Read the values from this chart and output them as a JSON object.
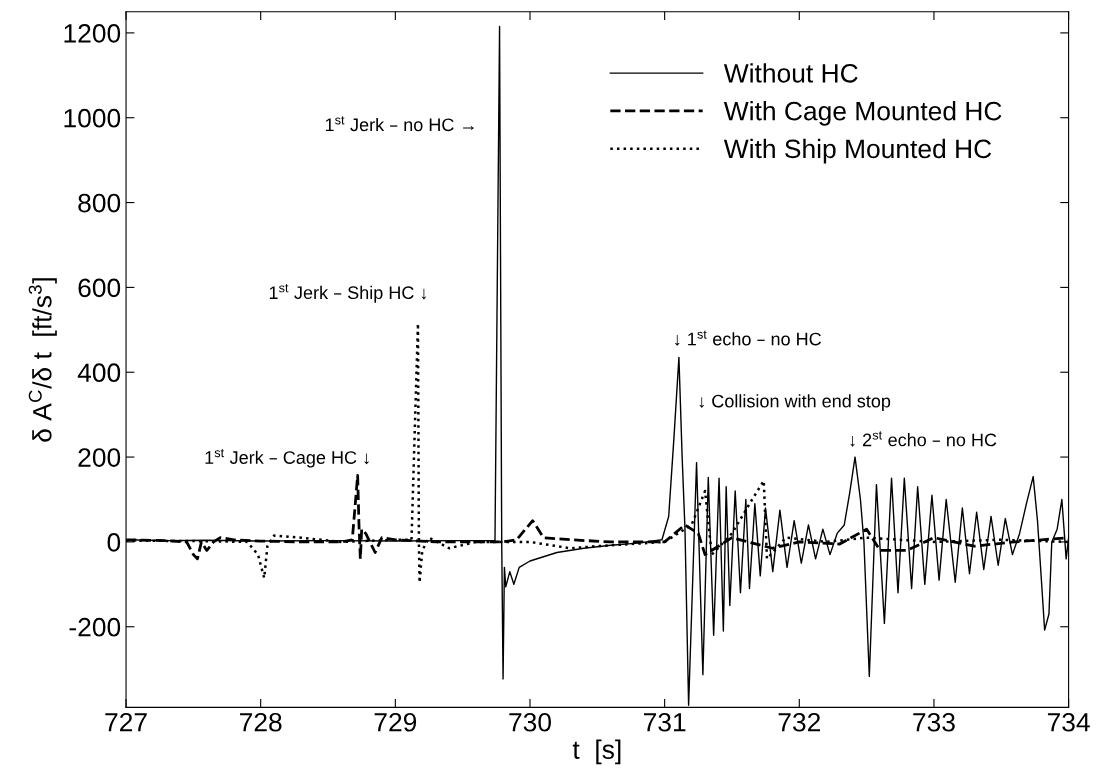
{
  "chart_data": {
    "type": "line",
    "xlabel": "t  [s]",
    "ylabel": "δ A$^{C}$/δ t  [ft/s$^{3}$]",
    "xlim": [
      727,
      734
    ],
    "xticks": [
      727,
      728,
      729,
      730,
      731,
      732,
      733,
      734
    ],
    "ylim": [
      -390,
      1250
    ],
    "yticks": [
      -200,
      0,
      200,
      400,
      600,
      800,
      1000,
      1200
    ],
    "grid": false,
    "legend": "top right",
    "marker": "none",
    "series": [
      {
        "name": "Without HC",
        "color": "#000000",
        "line_style": "solid",
        "x": [
          727.0,
          727.3,
          727.6,
          728.0,
          728.5,
          729.0,
          729.5,
          729.74,
          729.774,
          729.79,
          729.8,
          729.81,
          729.82,
          729.85,
          729.88,
          729.92,
          730.0,
          730.1,
          730.2,
          730.4,
          730.6,
          730.8,
          730.98,
          731.03,
          731.07,
          731.106,
          731.13,
          731.151,
          731.178,
          731.237,
          731.284,
          731.324,
          731.364,
          731.404,
          731.436,
          731.457,
          731.484,
          731.524,
          731.563,
          731.603,
          731.63,
          731.67,
          731.71,
          731.749,
          731.803,
          731.856,
          731.909,
          731.962,
          732.015,
          732.068,
          732.121,
          732.175,
          732.228,
          732.281,
          732.334,
          732.374,
          732.414,
          732.454,
          732.48,
          732.52,
          732.573,
          732.632,
          732.685,
          732.733,
          732.78,
          732.834,
          732.879,
          732.932,
          732.985,
          733.038,
          733.091,
          733.158,
          733.211,
          733.264,
          733.317,
          733.37,
          733.424,
          733.477,
          733.53,
          733.583,
          733.636,
          733.689,
          733.737,
          733.769,
          733.796,
          733.822,
          733.854,
          733.875,
          733.915,
          733.95,
          733.982,
          734.0
        ],
        "values": [
          5,
          3,
          4,
          2,
          3,
          2,
          3,
          3,
          1215,
          0,
          -323,
          -60,
          -106,
          -70,
          -100,
          -60,
          -45,
          -35,
          -25,
          -15,
          -8,
          -3,
          5,
          60,
          250,
          435,
          200,
          30,
          -385,
          187,
          -313,
          152,
          -220,
          150,
          -210,
          130,
          -150,
          120,
          -120,
          100,
          -110,
          90,
          -80,
          80,
          -70,
          75,
          -60,
          50,
          -50,
          40,
          -40,
          30,
          -30,
          20,
          40,
          115,
          200,
          100,
          0,
          -317,
          135,
          -192,
          150,
          -120,
          150,
          -110,
          130,
          -100,
          110,
          -90,
          100,
          -95,
          80,
          -75,
          70,
          -65,
          60,
          -55,
          55,
          -30,
          20,
          93,
          154,
          50,
          -80,
          -208,
          -170,
          0,
          30,
          100,
          -40,
          10
        ]
      },
      {
        "name": "With Cage Mounted HC",
        "color": "#000000",
        "line_style": "dashed",
        "x": [
          727.0,
          727.3,
          727.45,
          727.5,
          727.53,
          727.56,
          727.6,
          727.65,
          727.7,
          727.8,
          728.0,
          728.3,
          728.6,
          728.68,
          728.7,
          728.72,
          728.73,
          728.74,
          728.75,
          728.78,
          728.85,
          728.9,
          729.0,
          729.3,
          729.8,
          729.9,
          730.02,
          730.1,
          730.3,
          730.6,
          731.0,
          731.15,
          731.25,
          731.3,
          731.5,
          731.8,
          732.0,
          732.3,
          732.5,
          732.6,
          732.8,
          733.0,
          733.3,
          733.6,
          733.8,
          734.0
        ],
        "values": [
          5,
          3,
          0,
          -30,
          -40,
          0,
          -20,
          0,
          10,
          5,
          2,
          0,
          0,
          5,
          80,
          157,
          40,
          -40,
          30,
          20,
          -25,
          10,
          5,
          0,
          0,
          5,
          50,
          10,
          5,
          0,
          0,
          40,
          20,
          -30,
          10,
          -15,
          0,
          -5,
          30,
          -20,
          -20,
          10,
          -10,
          0,
          5,
          10
        ]
      },
      {
        "name": "With Ship Mounted HC",
        "color": "#000000",
        "line_style": "dotted",
        "x": [
          727.0,
          727.5,
          727.9,
          727.98,
          728.026,
          728.05,
          728.1,
          728.3,
          728.6,
          729.0,
          729.12,
          729.168,
          729.175,
          729.18,
          729.2,
          729.25,
          729.4,
          729.6,
          730.0,
          730.3,
          730.5,
          731.0,
          731.2,
          731.3,
          731.35,
          731.5,
          731.65,
          731.736,
          731.76,
          731.9,
          732.2,
          732.5,
          733.0,
          733.5,
          734.0
        ],
        "values": [
          3,
          2,
          0,
          -30,
          -85,
          -10,
          15,
          10,
          0,
          5,
          5,
          515,
          0,
          -96,
          -20,
          10,
          -15,
          0,
          0,
          -15,
          -10,
          0,
          40,
          120,
          -30,
          20,
          100,
          144,
          -40,
          10,
          0,
          10,
          0,
          5,
          0
        ]
      }
    ],
    "annotations": [
      "1$^{st}$ Jerk – no HC →",
      "1$^{st}$ Jerk – Ship HC ↓",
      "1$^{st}$ Jerk – Cage HC ↓",
      "↓ 1$^{st}$ echo – no HC",
      "↓ Collision with end stop",
      "↓ 2$^{st}$ echo – no HC"
    ]
  }
}
